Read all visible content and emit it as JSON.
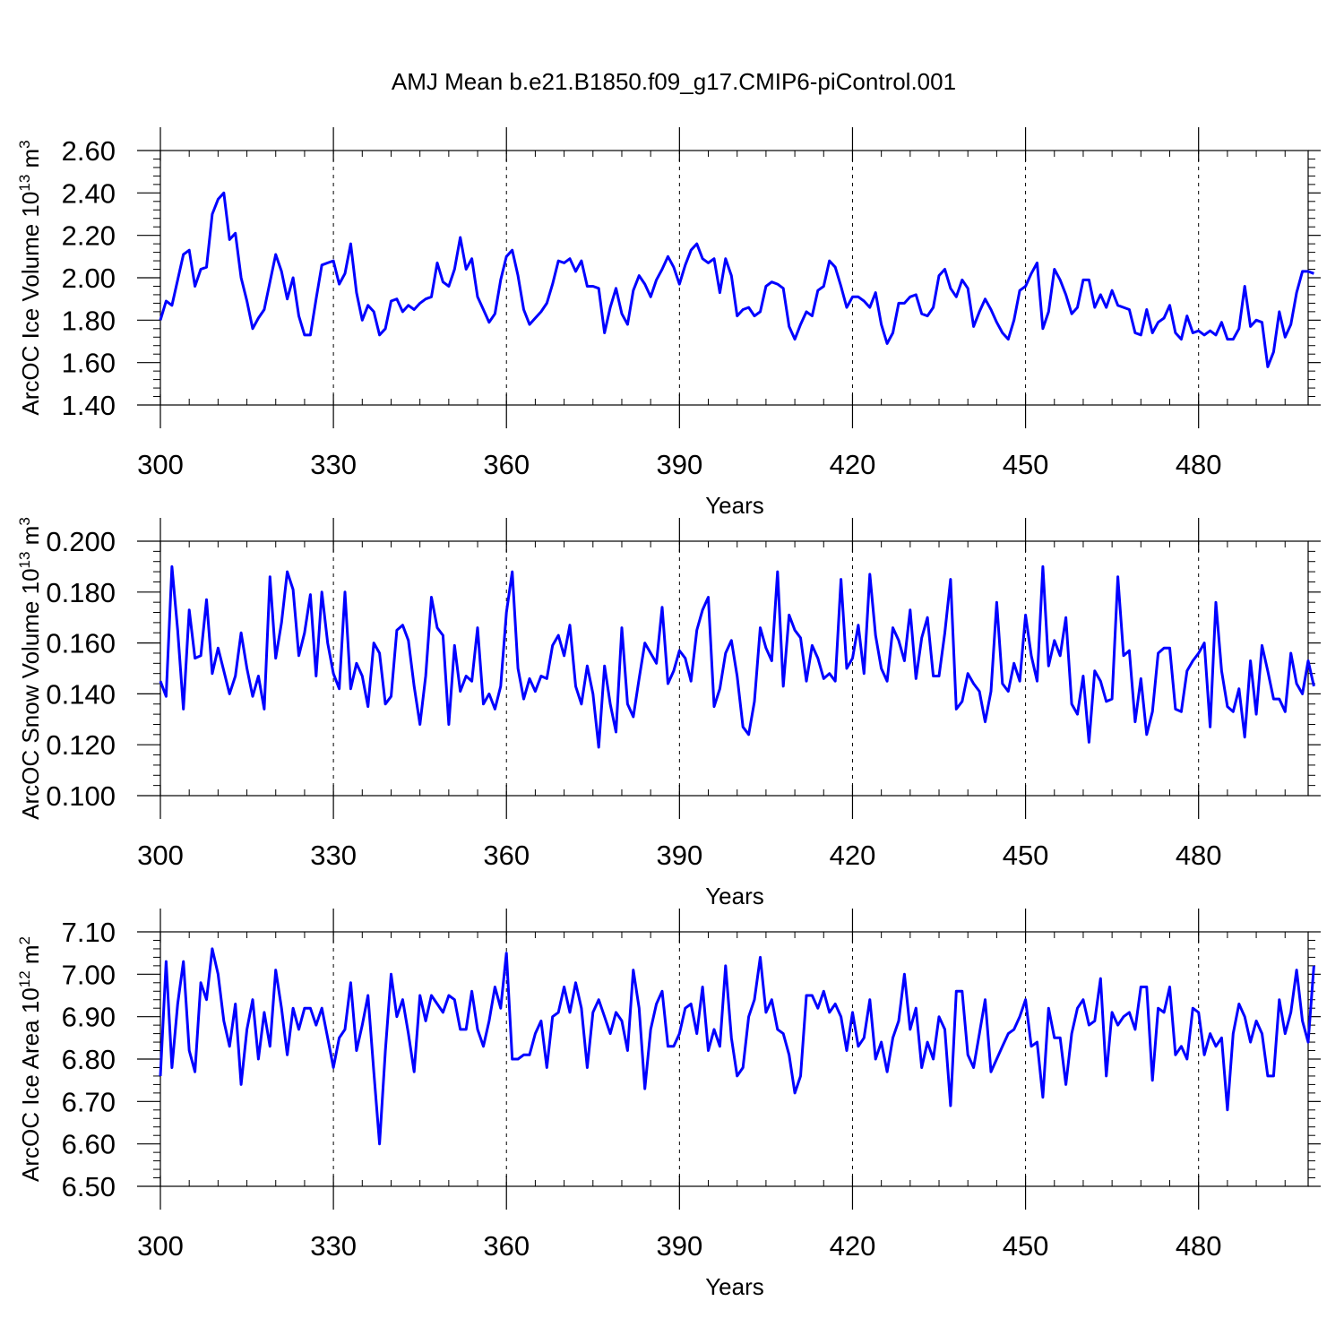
{
  "figure": {
    "title": "AMJ Mean b.e21.B1850.f09_g17.CMIP6-piControl.001",
    "line_color": "#0000ff"
  },
  "chart_data": [
    {
      "type": "line",
      "ylabel": "ArcOC Ice Volume 10",
      "ylabel_exp": "13",
      "ylabel_unit": " m",
      "ylabel_unit_exp": "3",
      "xlabel": "Years",
      "xlim": [
        300,
        499
      ],
      "ylim": [
        1.4,
        2.6
      ],
      "yticks": [
        "1.40",
        "1.60",
        "1.80",
        "2.00",
        "2.20",
        "2.40",
        "2.60"
      ],
      "ytick_values": [
        1.4,
        1.6,
        1.8,
        2.0,
        2.2,
        2.4,
        2.6
      ],
      "xticks": [
        "300",
        "330",
        "360",
        "390",
        "420",
        "450",
        "480"
      ],
      "xtick_values": [
        300,
        330,
        360,
        390,
        420,
        450,
        480
      ],
      "x_start": 300,
      "values": [
        1.8,
        1.89,
        1.87,
        1.99,
        2.11,
        2.13,
        1.96,
        2.04,
        2.05,
        2.3,
        2.37,
        2.4,
        2.18,
        2.21,
        2.0,
        1.89,
        1.76,
        1.81,
        1.85,
        1.98,
        2.11,
        2.03,
        1.9,
        2.0,
        1.82,
        1.73,
        1.73,
        1.9,
        2.06,
        2.07,
        2.08,
        1.97,
        2.02,
        2.16,
        1.93,
        1.8,
        1.87,
        1.84,
        1.73,
        1.76,
        1.89,
        1.9,
        1.84,
        1.87,
        1.85,
        1.88,
        1.9,
        1.91,
        2.07,
        1.98,
        1.96,
        2.04,
        2.19,
        2.04,
        2.09,
        1.91,
        1.85,
        1.79,
        1.83,
        1.99,
        2.1,
        2.13,
        2.01,
        1.85,
        1.78,
        1.81,
        1.84,
        1.88,
        1.97,
        2.08,
        2.07,
        2.09,
        2.03,
        2.08,
        1.96,
        1.96,
        1.95,
        1.74,
        1.86,
        1.95,
        1.83,
        1.78,
        1.94,
        2.01,
        1.97,
        1.91,
        1.99,
        2.04,
        2.1,
        2.05,
        1.97,
        2.06,
        2.13,
        2.16,
        2.09,
        2.07,
        2.09,
        1.93,
        2.09,
        2.01,
        1.82,
        1.85,
        1.86,
        1.82,
        1.84,
        1.96,
        1.98,
        1.97,
        1.95,
        1.77,
        1.71,
        1.78,
        1.84,
        1.82,
        1.94,
        1.96,
        2.08,
        2.05,
        1.96,
        1.86,
        1.91,
        1.91,
        1.89,
        1.86,
        1.93,
        1.78,
        1.69,
        1.74,
        1.88,
        1.88,
        1.91,
        1.92,
        1.83,
        1.82,
        1.86,
        2.01,
        2.04,
        1.95,
        1.91,
        1.99,
        1.95,
        1.77,
        1.84,
        1.9,
        1.85,
        1.79,
        1.74,
        1.71,
        1.8,
        1.94,
        1.96,
        2.02,
        2.07,
        1.76,
        1.84,
        2.04,
        1.99,
        1.92,
        1.83,
        1.86,
        1.99,
        1.99,
        1.86,
        1.92,
        1.86,
        1.94,
        1.87,
        1.86,
        1.85,
        1.74,
        1.73,
        1.85,
        1.74,
        1.79,
        1.81,
        1.87,
        1.74,
        1.71,
        1.82,
        1.74,
        1.75,
        1.73,
        1.75,
        1.73,
        1.79,
        1.71,
        1.71,
        1.76,
        1.96,
        1.77,
        1.8,
        1.79,
        1.58,
        1.65,
        1.84,
        1.72,
        1.78,
        1.93,
        2.03,
        2.03,
        2.02
      ]
    },
    {
      "type": "line",
      "ylabel": "ArcOC Snow Volume 10",
      "ylabel_exp": "13",
      "ylabel_unit": " m",
      "ylabel_unit_exp": "3",
      "xlabel": "Years",
      "xlim": [
        300,
        499
      ],
      "ylim": [
        0.1,
        0.2
      ],
      "yticks": [
        "0.100",
        "0.120",
        "0.140",
        "0.160",
        "0.180",
        "0.200"
      ],
      "ytick_values": [
        0.1,
        0.12,
        0.14,
        0.16,
        0.18,
        0.2
      ],
      "xticks": [
        "300",
        "330",
        "360",
        "390",
        "420",
        "450",
        "480"
      ],
      "xtick_values": [
        300,
        330,
        360,
        390,
        420,
        450,
        480
      ],
      "x_start": 300,
      "values": [
        0.145,
        0.139,
        0.19,
        0.165,
        0.134,
        0.173,
        0.154,
        0.155,
        0.177,
        0.148,
        0.158,
        0.149,
        0.14,
        0.147,
        0.164,
        0.15,
        0.139,
        0.147,
        0.134,
        0.186,
        0.154,
        0.168,
        0.188,
        0.181,
        0.155,
        0.164,
        0.179,
        0.147,
        0.18,
        0.16,
        0.148,
        0.142,
        0.18,
        0.142,
        0.152,
        0.147,
        0.135,
        0.16,
        0.156,
        0.136,
        0.139,
        0.165,
        0.167,
        0.161,
        0.143,
        0.128,
        0.147,
        0.178,
        0.166,
        0.163,
        0.128,
        0.159,
        0.141,
        0.147,
        0.145,
        0.166,
        0.136,
        0.14,
        0.134,
        0.143,
        0.172,
        0.188,
        0.15,
        0.138,
        0.146,
        0.141,
        0.147,
        0.146,
        0.159,
        0.163,
        0.155,
        0.167,
        0.143,
        0.136,
        0.151,
        0.14,
        0.119,
        0.151,
        0.136,
        0.125,
        0.166,
        0.136,
        0.131,
        0.146,
        0.16,
        0.156,
        0.152,
        0.174,
        0.144,
        0.149,
        0.157,
        0.154,
        0.145,
        0.165,
        0.173,
        0.178,
        0.135,
        0.142,
        0.156,
        0.161,
        0.147,
        0.127,
        0.124,
        0.137,
        0.166,
        0.158,
        0.153,
        0.188,
        0.143,
        0.171,
        0.165,
        0.162,
        0.145,
        0.159,
        0.154,
        0.146,
        0.148,
        0.145,
        0.185,
        0.15,
        0.154,
        0.167,
        0.148,
        0.187,
        0.163,
        0.15,
        0.145,
        0.166,
        0.161,
        0.153,
        0.173,
        0.146,
        0.162,
        0.17,
        0.147,
        0.147,
        0.164,
        0.185,
        0.134,
        0.137,
        0.148,
        0.144,
        0.141,
        0.129,
        0.141,
        0.176,
        0.144,
        0.141,
        0.152,
        0.145,
        0.171,
        0.155,
        0.145,
        0.19,
        0.151,
        0.161,
        0.155,
        0.17,
        0.136,
        0.132,
        0.147,
        0.121,
        0.149,
        0.145,
        0.137,
        0.138,
        0.186,
        0.155,
        0.157,
        0.129,
        0.146,
        0.124,
        0.133,
        0.156,
        0.158,
        0.158,
        0.134,
        0.133,
        0.149,
        0.153,
        0.156,
        0.16,
        0.127,
        0.176,
        0.149,
        0.135,
        0.133,
        0.142,
        0.123,
        0.153,
        0.132,
        0.159,
        0.149,
        0.138,
        0.138,
        0.133,
        0.156,
        0.144,
        0.14,
        0.153,
        0.143
      ]
    },
    {
      "type": "line",
      "ylabel": "ArcOC Ice Area 10",
      "ylabel_exp": "12",
      "ylabel_unit": " m",
      "ylabel_unit_exp": "2",
      "xlabel": "Years",
      "xlim": [
        300,
        499
      ],
      "ylim": [
        6.5,
        7.1
      ],
      "yticks": [
        "6.50",
        "6.60",
        "6.70",
        "6.80",
        "6.90",
        "7.00",
        "7.10"
      ],
      "ytick_values": [
        6.5,
        6.6,
        6.7,
        6.8,
        6.9,
        7.0,
        7.1
      ],
      "xticks": [
        "300",
        "330",
        "360",
        "390",
        "420",
        "450",
        "480"
      ],
      "xtick_values": [
        300,
        330,
        360,
        390,
        420,
        450,
        480
      ],
      "x_start": 300,
      "values": [
        6.76,
        7.03,
        6.78,
        6.93,
        7.03,
        6.82,
        6.77,
        6.98,
        6.94,
        7.06,
        7.0,
        6.89,
        6.83,
        6.93,
        6.74,
        6.87,
        6.94,
        6.8,
        6.91,
        6.83,
        7.01,
        6.92,
        6.81,
        6.92,
        6.87,
        6.92,
        6.92,
        6.88,
        6.92,
        6.85,
        6.78,
        6.85,
        6.87,
        6.98,
        6.82,
        6.88,
        6.95,
        6.77,
        6.6,
        6.82,
        7.0,
        6.9,
        6.94,
        6.86,
        6.77,
        6.95,
        6.89,
        6.95,
        6.93,
        6.91,
        6.95,
        6.94,
        6.87,
        6.87,
        6.96,
        6.87,
        6.83,
        6.89,
        6.97,
        6.92,
        7.05,
        6.8,
        6.8,
        6.81,
        6.81,
        6.86,
        6.89,
        6.78,
        6.9,
        6.91,
        6.97,
        6.91,
        6.98,
        6.92,
        6.78,
        6.91,
        6.94,
        6.9,
        6.86,
        6.91,
        6.89,
        6.82,
        7.01,
        6.92,
        6.73,
        6.87,
        6.93,
        6.96,
        6.83,
        6.83,
        6.86,
        6.92,
        6.93,
        6.86,
        6.97,
        6.82,
        6.87,
        6.83,
        7.02,
        6.85,
        6.76,
        6.78,
        6.9,
        6.94,
        7.04,
        6.91,
        6.94,
        6.87,
        6.86,
        6.81,
        6.72,
        6.76,
        6.95,
        6.95,
        6.92,
        6.96,
        6.91,
        6.93,
        6.9,
        6.82,
        6.91,
        6.83,
        6.85,
        6.94,
        6.8,
        6.84,
        6.77,
        6.85,
        6.89,
        7.0,
        6.87,
        6.92,
        6.78,
        6.84,
        6.8,
        6.9,
        6.87,
        6.69,
        6.96,
        6.96,
        6.81,
        6.78,
        6.86,
        6.94,
        6.77,
        6.8,
        6.83,
        6.86,
        6.87,
        6.9,
        6.94,
        6.83,
        6.84,
        6.71,
        6.92,
        6.85,
        6.85,
        6.74,
        6.86,
        6.92,
        6.94,
        6.88,
        6.89,
        6.99,
        6.76,
        6.91,
        6.88,
        6.9,
        6.91,
        6.87,
        6.97,
        6.97,
        6.75,
        6.92,
        6.91,
        6.97,
        6.81,
        6.83,
        6.8,
        6.92,
        6.91,
        6.81,
        6.86,
        6.83,
        6.85,
        6.68,
        6.86,
        6.93,
        6.9,
        6.84,
        6.89,
        6.86,
        6.76,
        6.76,
        6.94,
        6.86,
        6.91,
        7.01,
        6.89,
        6.84,
        7.02
      ]
    }
  ]
}
